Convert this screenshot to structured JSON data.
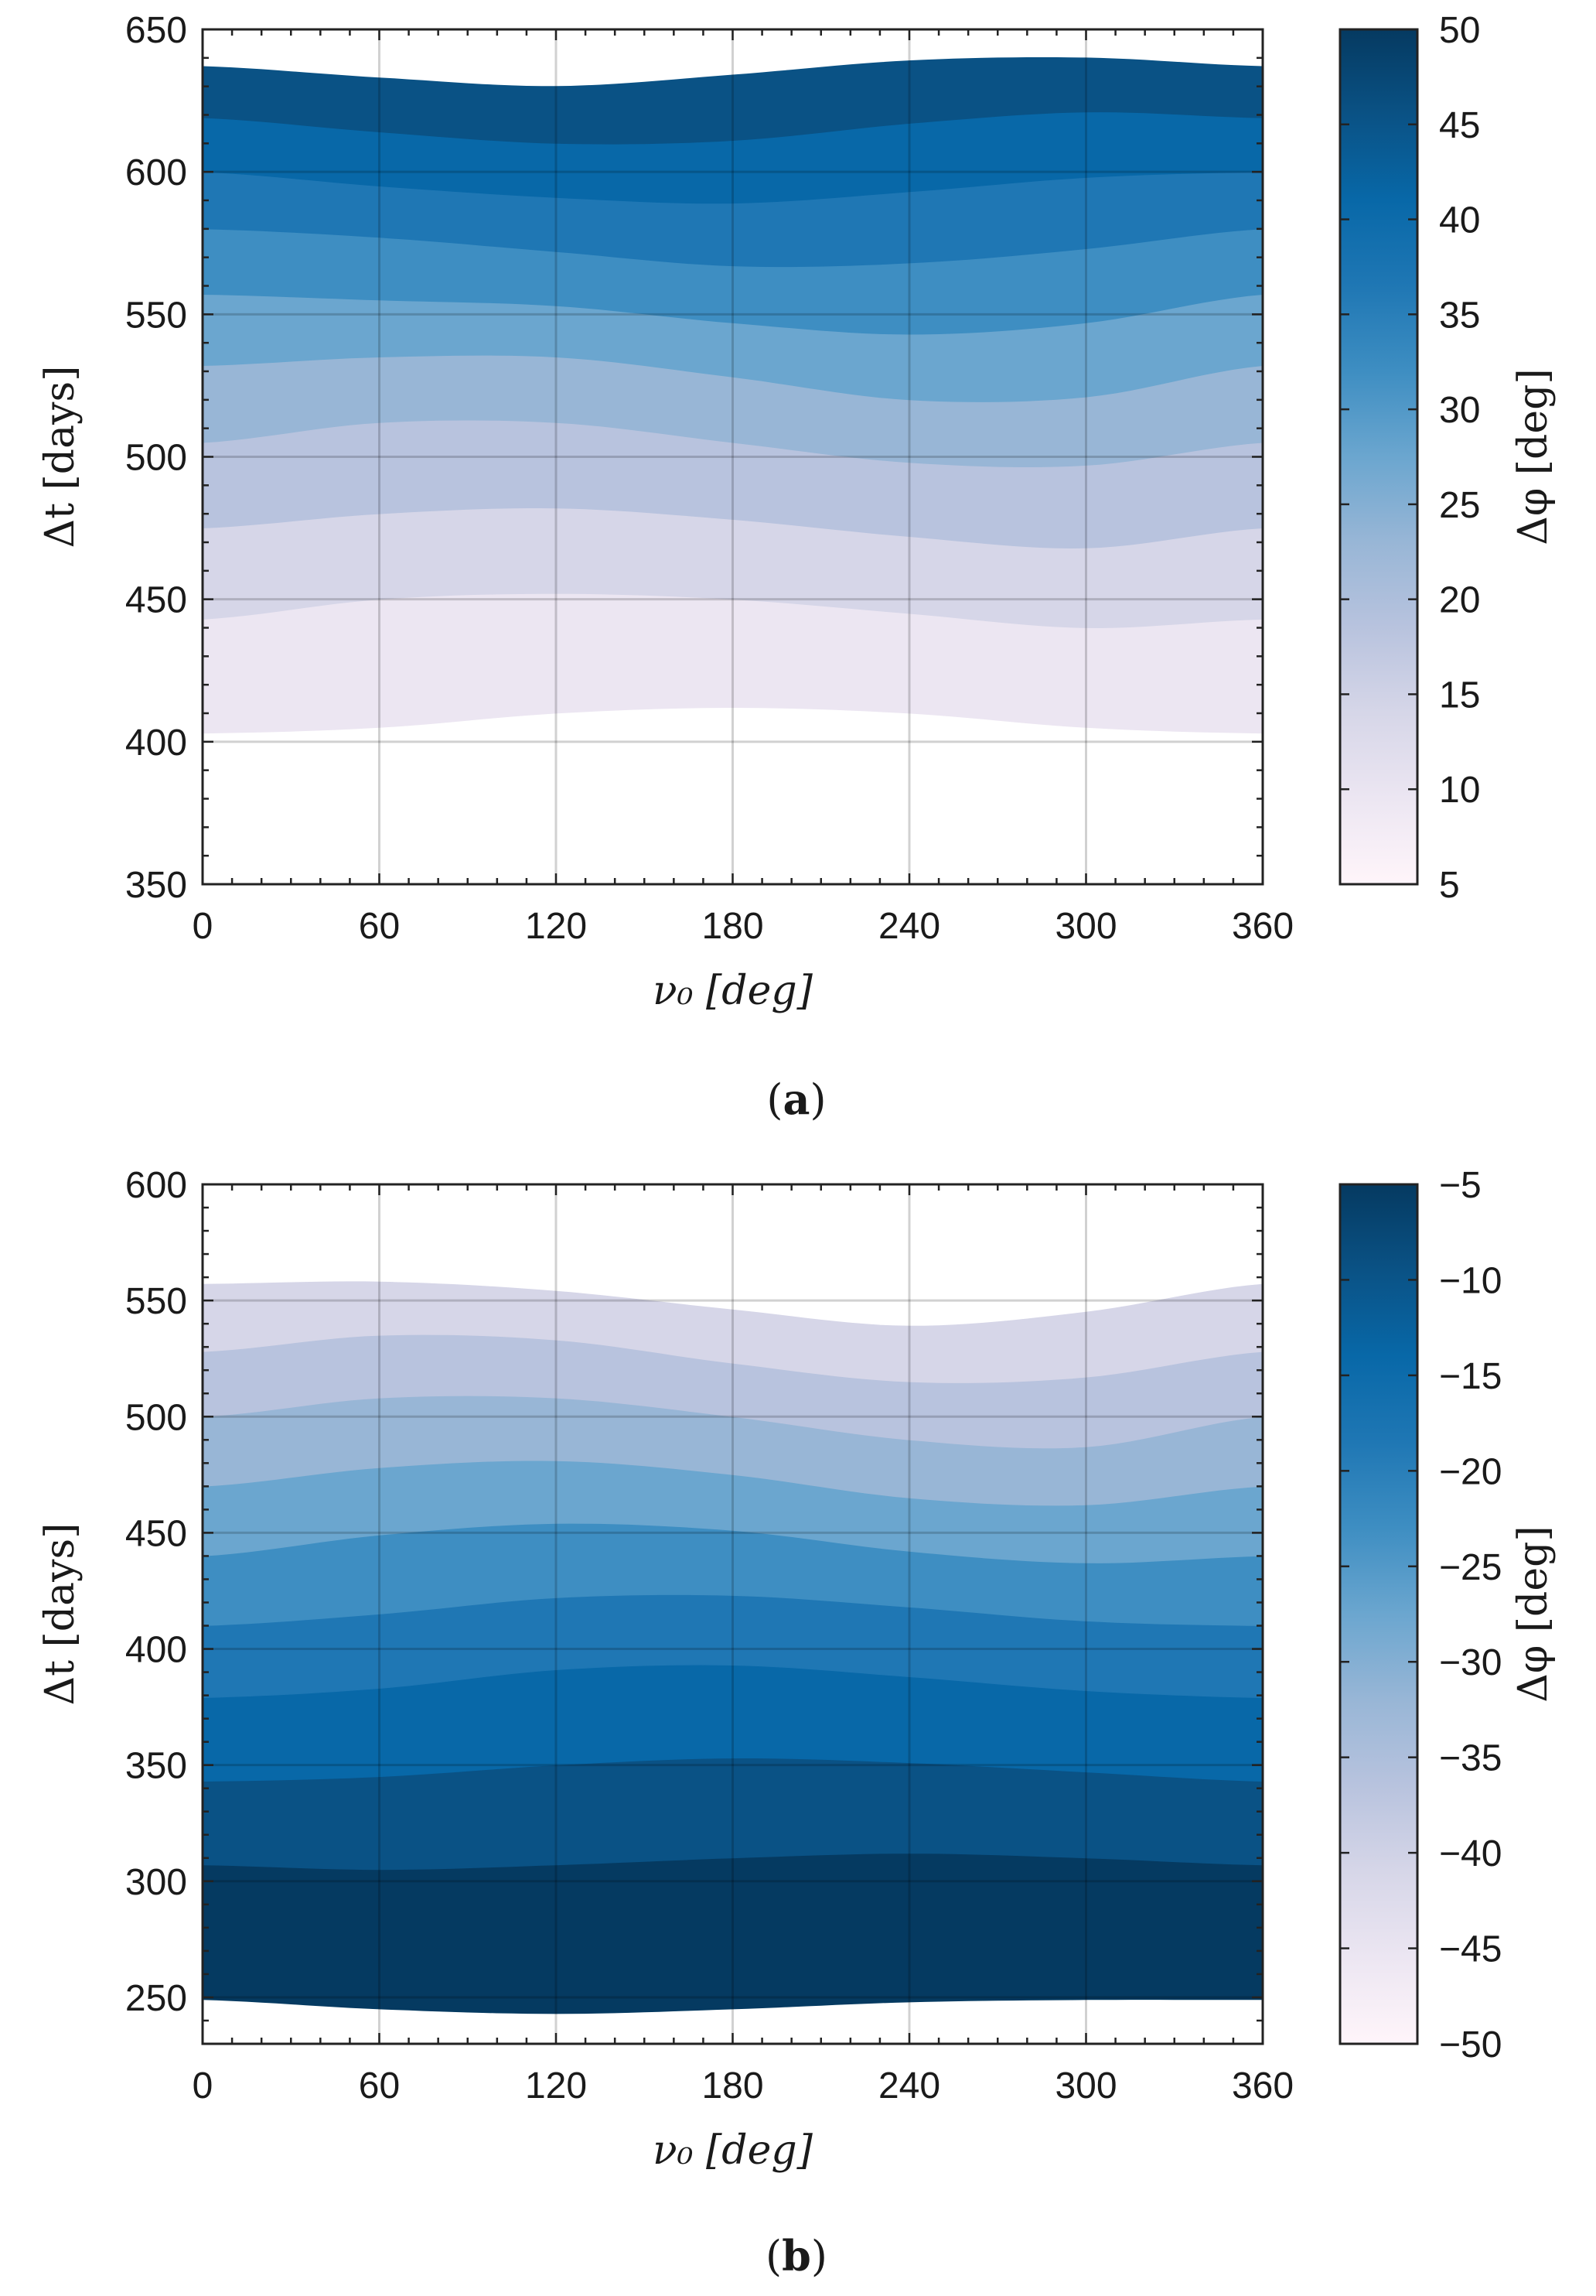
{
  "chart_data": [
    {
      "panel_label": "a",
      "type": "contour",
      "xlabel": "ν₀ [deg]",
      "ylabel": "Δt [days]",
      "xlim": [
        0,
        360
      ],
      "ylim": [
        350,
        650
      ],
      "xticks": [
        "0",
        "60",
        "120",
        "180",
        "240",
        "300",
        "360"
      ],
      "yticks": [
        "350",
        "400",
        "450",
        "500",
        "550",
        "600",
        "650"
      ],
      "grid": true,
      "colorbar": {
        "label": "Δφ [deg]",
        "range": [
          5,
          50
        ],
        "ticks": [
          "5",
          "10",
          "15",
          "20",
          "25",
          "30",
          "35",
          "40",
          "45",
          "50"
        ],
        "colors": [
          "#fff5fa",
          "#ece6f2",
          "#d6d6e8",
          "#b8c3de",
          "#98b6d6",
          "#6ba6cf",
          "#3e8ec2",
          "#1f77b4",
          "#0868a8",
          "#0a5285",
          "#053a61"
        ]
      },
      "contour_levels": [
        {
          "level": 5,
          "dt": [
            403,
            405,
            410,
            412,
            410,
            405,
            403
          ]
        },
        {
          "level": 10,
          "dt": [
            443,
            450,
            452,
            450,
            445,
            440,
            443
          ]
        },
        {
          "level": 15,
          "dt": [
            475,
            480,
            482,
            478,
            472,
            468,
            475
          ]
        },
        {
          "level": 20,
          "dt": [
            505,
            512,
            512,
            505,
            498,
            497,
            505
          ]
        },
        {
          "level": 25,
          "dt": [
            532,
            535,
            535,
            528,
            520,
            521,
            532
          ]
        },
        {
          "level": 30,
          "dt": [
            557,
            555,
            553,
            547,
            543,
            547,
            557
          ]
        },
        {
          "level": 35,
          "dt": [
            580,
            577,
            572,
            567,
            568,
            573,
            580
          ]
        },
        {
          "level": 40,
          "dt": [
            600,
            595,
            591,
            589,
            593,
            598,
            600
          ]
        },
        {
          "level": 45,
          "dt": [
            619,
            614,
            610,
            611,
            617,
            621,
            619
          ]
        },
        {
          "level": 50,
          "dt": [
            637,
            633,
            630,
            634,
            639,
            640,
            637
          ]
        }
      ]
    },
    {
      "panel_label": "b",
      "type": "contour",
      "xlabel": "ν₀ [deg]",
      "ylabel": "Δt [days]",
      "xlim": [
        0,
        360
      ],
      "ylim": [
        230,
        600
      ],
      "xticks": [
        "0",
        "60",
        "120",
        "180",
        "240",
        "300",
        "360"
      ],
      "yticks": [
        "250",
        "300",
        "350",
        "400",
        "450",
        "500",
        "550",
        "600"
      ],
      "grid": true,
      "colorbar": {
        "label": "Δφ [deg]",
        "range": [
          -50,
          -5
        ],
        "ticks": [
          "−50",
          "−45",
          "−40",
          "−35",
          "−30",
          "−25",
          "−20",
          "−15",
          "−10",
          "−5"
        ],
        "colors": [
          "#053a61",
          "#0a5285",
          "#0868a8",
          "#1f77b4",
          "#3e8ec2",
          "#6ba6cf",
          "#98b6d6",
          "#b8c3de",
          "#d6d6e8",
          "#ece6f2",
          "#fff5fa"
        ]
      },
      "contour_levels": [
        {
          "level": -5,
          "dt": [
            249,
            245,
            243,
            245,
            248,
            249,
            249
          ]
        },
        {
          "level": -10,
          "dt": [
            307,
            305,
            307,
            310,
            312,
            310,
            307
          ]
        },
        {
          "level": -15,
          "dt": [
            343,
            345,
            350,
            353,
            351,
            347,
            343
          ]
        },
        {
          "level": -20,
          "dt": [
            379,
            383,
            391,
            393,
            388,
            382,
            379
          ]
        },
        {
          "level": -25,
          "dt": [
            410,
            415,
            422,
            423,
            418,
            412,
            410
          ]
        },
        {
          "level": -30,
          "dt": [
            440,
            449,
            454,
            451,
            442,
            437,
            440
          ]
        },
        {
          "level": -35,
          "dt": [
            470,
            478,
            481,
            475,
            465,
            462,
            470
          ]
        },
        {
          "level": -40,
          "dt": [
            500,
            508,
            508,
            500,
            490,
            487,
            500
          ]
        },
        {
          "level": -45,
          "dt": [
            528,
            535,
            533,
            523,
            515,
            517,
            528
          ]
        },
        {
          "level": -50,
          "dt": [
            557,
            558,
            554,
            546,
            539,
            545,
            557
          ]
        }
      ]
    }
  ]
}
